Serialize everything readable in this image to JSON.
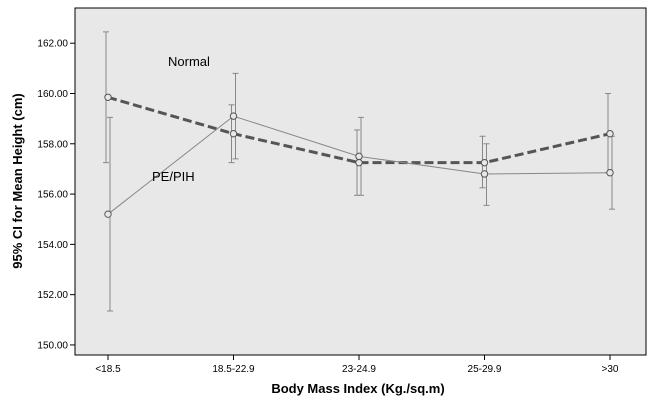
{
  "chart_data": {
    "type": "line",
    "title": "",
    "xlabel": "Body Mass Index (Kg./sq.m)",
    "ylabel": "95% CI for Mean Height (cm)",
    "categories": [
      "<18.5",
      "18.5-22.9",
      "23-24.9",
      "25-29.9",
      ">30"
    ],
    "yticks": [
      "150.00",
      "152.00",
      "154.00",
      "156.00",
      "158.00",
      "160.00",
      "162.00"
    ],
    "ylim": [
      149.6,
      163.4
    ],
    "grid": false,
    "colors": {
      "plot_bg": "#e8e8e8",
      "normal": "#555555",
      "pe_pih": "#888888",
      "error_bar": "#888888"
    },
    "series": [
      {
        "name": "Normal",
        "style": "dashed",
        "values": [
          159.85,
          158.4,
          157.25,
          157.25,
          158.4
        ],
        "ci_low": [
          157.25,
          157.25,
          155.95,
          156.25,
          156.85
        ],
        "ci_high": [
          162.45,
          159.55,
          158.55,
          158.3,
          160.0
        ]
      },
      {
        "name": "PE/PIH",
        "style": "solid",
        "values": [
          155.2,
          159.1,
          157.5,
          156.8,
          156.85
        ],
        "ci_low": [
          151.35,
          157.4,
          155.95,
          155.55,
          155.4
        ],
        "ci_high": [
          159.05,
          160.8,
          159.05,
          158.0,
          158.3
        ]
      }
    ],
    "annotations": [
      {
        "text": "Normal"
      },
      {
        "text": "PE/PIH"
      }
    ]
  }
}
